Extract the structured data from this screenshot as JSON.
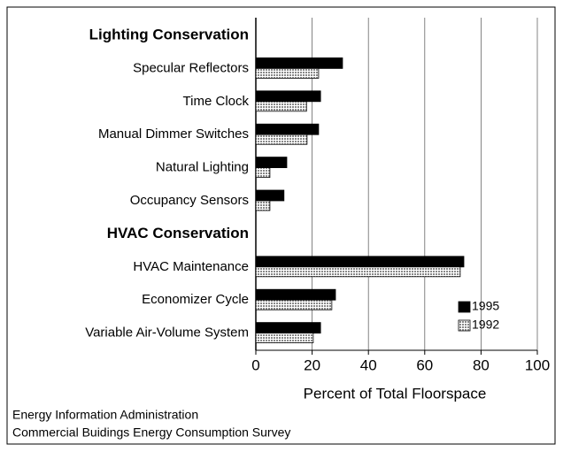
{
  "chart_data": {
    "type": "bar",
    "orientation": "horizontal",
    "groups": [
      {
        "label": "Lighting Conservation",
        "categories": [
          "Specular Reflectors",
          "Time Clock",
          "Manual Dimmer Switches",
          "Natural Lighting",
          "Occupancy Sensors"
        ]
      },
      {
        "label": "HVAC Conservation",
        "categories": [
          "HVAC Maintenance",
          "Economizer Cycle",
          "Variable Air-Volume System"
        ]
      }
    ],
    "series": [
      {
        "name": "1995",
        "color": "#000000",
        "values": [
          30.8,
          23,
          22.3,
          11,
          10,
          73.9,
          28.3,
          23
        ]
      },
      {
        "name": "1992",
        "color": "#c4c4c4",
        "values": [
          22.3,
          18,
          18.2,
          5,
          5,
          72.6,
          27,
          20.4
        ]
      }
    ],
    "xlim": [
      0,
      100
    ],
    "xticks": [
      0,
      20,
      40,
      60,
      80,
      100
    ],
    "x_label": "Percent of Total Floorspace",
    "grid": true,
    "legend": "lower right",
    "source": [
      "Energy Information Administration",
      "Commercial Buidings Energy Consumption Survey"
    ]
  }
}
